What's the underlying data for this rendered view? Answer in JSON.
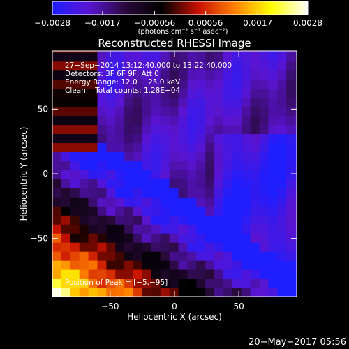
{
  "chart_data": {
    "type": "heatmap",
    "title": "Reconstructed RHESSI Image",
    "xlabel": "Heliocentric X (arcsec)",
    "ylabel": "Heliocentric Y (arcsec)",
    "xlim": [
      -95,
      95
    ],
    "ylim": [
      -95,
      95
    ],
    "x_ticks": [
      -50,
      0,
      50
    ],
    "y_ticks": [
      -50,
      0,
      50
    ],
    "x_tick_labels": [
      "−50",
      "0",
      "50"
    ],
    "y_tick_labels": [
      "−50",
      "0",
      "50"
    ],
    "colorbar": {
      "min": -0.0028,
      "max": 0.0028,
      "ticks": [
        -0.0028,
        -0.0017,
        -0.00056,
        0.00056,
        0.0017,
        0.0028
      ],
      "tick_labels": [
        "−0.0028",
        "−0.0017",
        "−0.00056",
        "0.00056",
        "0.0017",
        "0.0028"
      ],
      "units_label": "(photons cm⁻² s⁻¹ asec⁻²)",
      "colors": [
        "#1e1eff",
        "#5a14d2",
        "#2a0a3c",
        "#000000",
        "#c81000",
        "#ff8000",
        "#ffff00",
        "#ffffff"
      ]
    },
    "annotations": {
      "time": "27−Sep−2014 13:12:40.000 to 13:22:40.000",
      "detectors": "Detectors: 3F 6F 9F, Att 0",
      "energy": "Energy Range: 12.0 − 25.0 keV",
      "clean": "Clean    Total counts: 1.28E+04",
      "peak": "Position of Peak = [−5,−95]"
    },
    "peak_position": [
      -5,
      -95
    ],
    "grid": false,
    "image_description_values": {
      "peak_value": 0.0028,
      "min_value": -0.0028
    }
  },
  "footer": {
    "timestamp": "20−May−2017 05:56"
  }
}
